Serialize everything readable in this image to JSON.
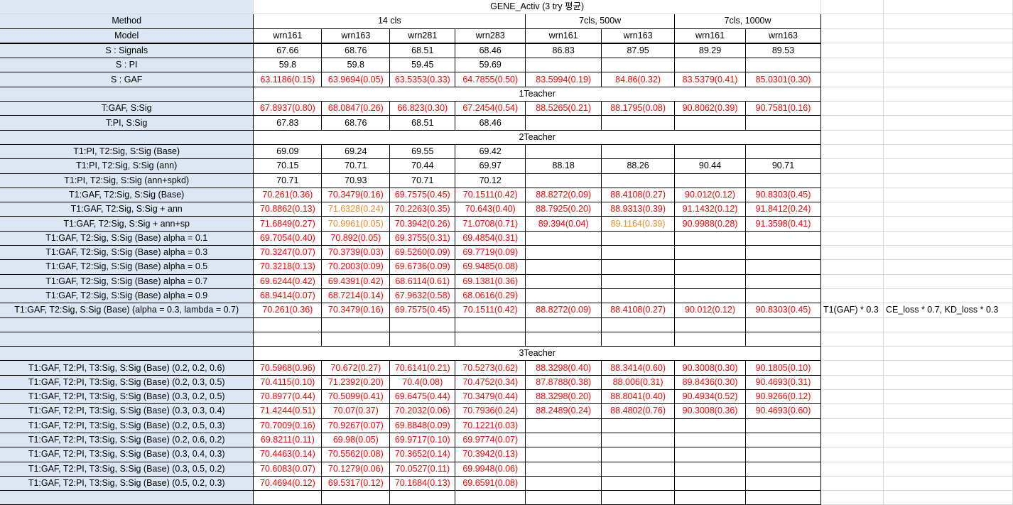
{
  "sheet": {
    "title": "GENE_Activ (3 try 평균)",
    "method_label": "Method",
    "model_label": "Model",
    "groups": [
      "14 cls",
      "7cls, 500w",
      "7cls, 1000w"
    ],
    "models": [
      "wrn161",
      "wrn163",
      "wrn281",
      "wrn283",
      "wrn161",
      "wrn163",
      "wrn161",
      "wrn163"
    ],
    "notes": [
      "T1(GAF) * 0.3",
      "CE_loss * 0.7, KD_loss * 0.3"
    ]
  },
  "rows": [
    {
      "type": "data",
      "label": "S : Signals",
      "values": [
        "67.66",
        "68.76",
        "68.51",
        "68.46",
        "86.83",
        "87.95",
        "89.29",
        "89.53"
      ],
      "color": [
        "b",
        "b",
        "b",
        "b",
        "b",
        "b",
        "b",
        "b"
      ]
    },
    {
      "type": "data",
      "label": "S : PI",
      "values": [
        "59.8",
        "59.8",
        "59.45",
        "59.69",
        "",
        "",
        "",
        ""
      ],
      "color": [
        "b",
        "b",
        "b",
        "b",
        "b",
        "b",
        "b",
        "b"
      ]
    },
    {
      "type": "data",
      "label": "S : GAF",
      "values": [
        "63.1186(0.15)",
        "63.9694(0.05)",
        "63.5353(0.33)",
        "64.7855(0.50)",
        "83.5994(0.19)",
        "84.86(0.32)",
        "83.5379(0.41)",
        "85.0301(0.30)"
      ],
      "color": [
        "r",
        "r",
        "r",
        "r",
        "r",
        "r",
        "r",
        "r"
      ]
    },
    {
      "type": "section",
      "label": "1Teacher"
    },
    {
      "type": "data",
      "label": "T:GAF, S:Sig",
      "values": [
        "67.8937(0.80)",
        "68.0847(0.26)",
        "66.823(0.30)",
        "67.2454(0.54)",
        "88.5265(0.21)",
        "88.1795(0.08)",
        "90.8062(0.39)",
        "90.7581(0.16)"
      ],
      "color": [
        "r",
        "r",
        "r",
        "r",
        "r",
        "r",
        "r",
        "r"
      ]
    },
    {
      "type": "data",
      "label": "T:PI, S:Sig",
      "values": [
        "67.83",
        "68.76",
        "68.51",
        "68.46",
        "",
        "",
        "",
        ""
      ],
      "color": [
        "b",
        "b",
        "b",
        "b",
        "b",
        "b",
        "b",
        "b"
      ]
    },
    {
      "type": "section",
      "label": "2Teacher"
    },
    {
      "type": "data",
      "label": "T1:PI, T2:Sig, S:Sig (Base)",
      "values": [
        "69.09",
        "69.24",
        "69.55",
        "69.42",
        "",
        "",
        "",
        ""
      ],
      "color": [
        "b",
        "b",
        "b",
        "b",
        "b",
        "b",
        "b",
        "b"
      ]
    },
    {
      "type": "data",
      "label": "T1:PI, T2:Sig, S:Sig (ann)",
      "values": [
        "70.15",
        "70.71",
        "70.44",
        "69.97",
        "88.18",
        "88.26",
        "90.44",
        "90.71"
      ],
      "color": [
        "b",
        "b",
        "b",
        "b",
        "b",
        "b",
        "b",
        "b"
      ]
    },
    {
      "type": "data",
      "label": "T1:PI, T2:Sig, S:Sig (ann+spkd)",
      "values": [
        "70.71",
        "70.93",
        "70.71",
        "70.12",
        "",
        "",
        "",
        ""
      ],
      "color": [
        "b",
        "b",
        "b",
        "b",
        "b",
        "b",
        "b",
        "b"
      ]
    },
    {
      "type": "data",
      "label": "T1:GAF, T2:Sig, S:Sig (Base)",
      "values": [
        "70.261(0.36)",
        "70.3479(0.16)",
        "69.7575(0.45)",
        "70.1511(0.42)",
        "88.8272(0.09)",
        "88.4108(0.27)",
        "90.012(0.12)",
        "90.8303(0.45)"
      ],
      "color": [
        "r",
        "r",
        "r",
        "r",
        "r",
        "r",
        "r",
        "r"
      ]
    },
    {
      "type": "data",
      "label": "T1:GAF, T2:Sig, S:Sig + ann",
      "values": [
        "70.8862(0.13)",
        "71.6328(0.24)",
        "70.2263(0.35)",
        "70.643(0.40)",
        "88.7925(0.20)",
        "88.9313(0.39)",
        "91.1432(0.12)",
        "91.8412(0.24)"
      ],
      "color": [
        "r",
        "o",
        "r",
        "r",
        "r",
        "r",
        "r",
        "r"
      ]
    },
    {
      "type": "data",
      "label": "T1:GAF, T2:Sig, S:Sig + ann+sp",
      "values": [
        "71.6849(0.27)",
        "70.9961(0.05)",
        "70.3942(0.26)",
        "71.0708(0.71)",
        "89.394(0.04)",
        "89.1164(0.39)",
        "90.9988(0.28)",
        "91.3598(0.41)"
      ],
      "color": [
        "r",
        "o",
        "r",
        "r",
        "r",
        "o",
        "r",
        "r"
      ]
    },
    {
      "type": "data",
      "label": "T1:GAF, T2:Sig, S:Sig (Base) alpha = 0.1",
      "values": [
        "69.7054(0.40)",
        "70.892(0.05)",
        "69.3755(0.31)",
        "69.4854(0.31)",
        "",
        "",
        "",
        ""
      ],
      "color": [
        "r",
        "r",
        "r",
        "r",
        "b",
        "b",
        "b",
        "b"
      ]
    },
    {
      "type": "data",
      "label": "T1:GAF, T2:Sig, S:Sig (Base) alpha = 0.3",
      "values": [
        "70.3247(0.07)",
        "70.3739(0.03)",
        "69.5260(0.09)",
        "69.7719(0.09)",
        "",
        "",
        "",
        ""
      ],
      "color": [
        "r",
        "r",
        "r",
        "r",
        "b",
        "b",
        "b",
        "b"
      ]
    },
    {
      "type": "data",
      "label": "T1:GAF, T2:Sig, S:Sig (Base) alpha = 0.5",
      "values": [
        "70.3218(0.13)",
        "70.2003(0.09)",
        "69.6736(0.09)",
        "69.9485(0.08)",
        "",
        "",
        "",
        ""
      ],
      "color": [
        "r",
        "r",
        "r",
        "r",
        "b",
        "b",
        "b",
        "b"
      ]
    },
    {
      "type": "data",
      "label": "T1:GAF, T2:Sig, S:Sig (Base) alpha = 0.7",
      "values": [
        "69.6244(0.42)",
        "69.4391(0.42)",
        "68.6114(0.61)",
        "69.1381(0.36)",
        "",
        "",
        "",
        ""
      ],
      "color": [
        "r",
        "r",
        "r",
        "r",
        "b",
        "b",
        "b",
        "b"
      ]
    },
    {
      "type": "data",
      "label": "T1:GAF, T2:Sig, S:Sig (Base) alpha = 0.9",
      "values": [
        "68.9414(0.07)",
        "68.7214(0.14)",
        "67.9632(0.58)",
        "68.0616(0.29)",
        "",
        "",
        "",
        ""
      ],
      "color": [
        "r",
        "r",
        "r",
        "r",
        "b",
        "b",
        "b",
        "b"
      ]
    },
    {
      "type": "data",
      "label": "T1:GAF, T2:Sig, S:Sig (Base) (alpha = 0.3, lambda = 0.7)",
      "values": [
        "70.261(0.36)",
        "70.3479(0.16)",
        "69.7575(0.45)",
        "70.1511(0.42)",
        "88.8272(0.09)",
        "88.4108(0.27)",
        "90.012(0.12)",
        "90.8303(0.45)"
      ],
      "color": [
        "r",
        "r",
        "r",
        "r",
        "r",
        "r",
        "r",
        "r"
      ],
      "notes": true
    },
    {
      "type": "blank"
    },
    {
      "type": "blank"
    },
    {
      "type": "section",
      "label": "3Teacher"
    },
    {
      "type": "data",
      "label": "T1:GAF, T2:PI, T3:Sig, S:Sig (Base) (0.2, 0.2, 0.6)",
      "values": [
        "70.5968(0.96)",
        "70.672(0.27)",
        "70.6141(0.21)",
        "70.5273(0.62)",
        "88.3298(0.40)",
        "88.3414(0.60)",
        "90.3008(0.30)",
        "90.1805(0.10)"
      ],
      "color": [
        "r",
        "r",
        "r",
        "r",
        "r",
        "r",
        "r",
        "r"
      ]
    },
    {
      "type": "data",
      "label": "T1:GAF, T2:PI, T3:Sig, S:Sig (Base) (0.2, 0.3, 0.5)",
      "values": [
        "70.4115(0.10)",
        "71.2392(0.20)",
        "70.4(0.08)",
        "70.4752(0.34)",
        "87.8788(0.38)",
        "88.006(0.31)",
        "89.8436(0.30)",
        "90.4693(0.31)"
      ],
      "color": [
        "r",
        "r",
        "r",
        "r",
        "r",
        "r",
        "r",
        "r"
      ]
    },
    {
      "type": "data",
      "label": "T1:GAF, T2:PI, T3:Sig, S:Sig (Base) (0.3, 0.2, 0.5)",
      "values": [
        "70.8977(0.44)",
        "70.5099(0.41)",
        "69.6475(0.44)",
        "70.3479(0.44)",
        "88.3298(0.20)",
        "88.8041(0.40)",
        "90.4934(0.52)",
        "90.9266(0.12)"
      ],
      "color": [
        "r",
        "r",
        "r",
        "r",
        "r",
        "r",
        "r",
        "r"
      ]
    },
    {
      "type": "data",
      "label": "T1:GAF, T2:PI, T3:Sig, S:Sig (Base) (0.3, 0.3, 0.4)",
      "values": [
        "71.4244(0.51)",
        "70.07(0.37)",
        "70.2032(0.06)",
        "70.7936(0.24)",
        "88.2489(0.24)",
        "88.4802(0.76)",
        "90.3008(0.36)",
        "90.4693(0.60)"
      ],
      "color": [
        "r",
        "r",
        "r",
        "r",
        "r",
        "r",
        "r",
        "r"
      ]
    },
    {
      "type": "data",
      "label": "T1:GAF, T2:PI, T3:Sig, S:Sig (Base) (0.2, 0.5, 0.3)",
      "values": [
        "70.7009(0.16)",
        "70.9267(0.07)",
        "69.8848(0.09)",
        "70.1221(0.03)",
        "",
        "",
        "",
        ""
      ],
      "color": [
        "r",
        "r",
        "r",
        "r",
        "b",
        "b",
        "b",
        "b"
      ]
    },
    {
      "type": "data",
      "label": "T1:GAF, T2:PI, T3:Sig, S:Sig (Base) (0.2, 0.6, 0.2)",
      "values": [
        "69.8211(0.11)",
        "69.98(0.05)",
        "69.9717(0.10)",
        "69.9774(0.07)",
        "",
        "",
        "",
        ""
      ],
      "color": [
        "r",
        "r",
        "r",
        "r",
        "b",
        "b",
        "b",
        "b"
      ]
    },
    {
      "type": "data",
      "label": "T1:GAF, T2:PI, T3:Sig, S:Sig (Base) (0.3, 0.4, 0.3)",
      "values": [
        "70.4463(0.14)",
        "70.5562(0.08)",
        "70.3652(0.14)",
        "70.3942(0.13)",
        "",
        "",
        "",
        ""
      ],
      "color": [
        "r",
        "r",
        "r",
        "r",
        "b",
        "b",
        "b",
        "b"
      ]
    },
    {
      "type": "data",
      "label": "T1:GAF, T2:PI, T3:Sig, S:Sig (Base) (0.3, 0.5, 0.2)",
      "values": [
        "70.6083(0.07)",
        "70.1279(0.06)",
        "70.0527(0.11)",
        "69.9948(0.06)",
        "",
        "",
        "",
        ""
      ],
      "color": [
        "r",
        "r",
        "r",
        "r",
        "b",
        "b",
        "b",
        "b"
      ]
    },
    {
      "type": "data",
      "label": "T1:GAF, T2:PI, T3:Sig, S:Sig (Base) (0.5, 0.2, 0.3)",
      "values": [
        "70.4694(0.12)",
        "69.5317(0.12)",
        "70.1684(0.13)",
        "69.6591(0.08)",
        "",
        "",
        "",
        ""
      ],
      "color": [
        "r",
        "r",
        "r",
        "r",
        "b",
        "b",
        "b",
        "b"
      ]
    },
    {
      "type": "blank"
    }
  ]
}
